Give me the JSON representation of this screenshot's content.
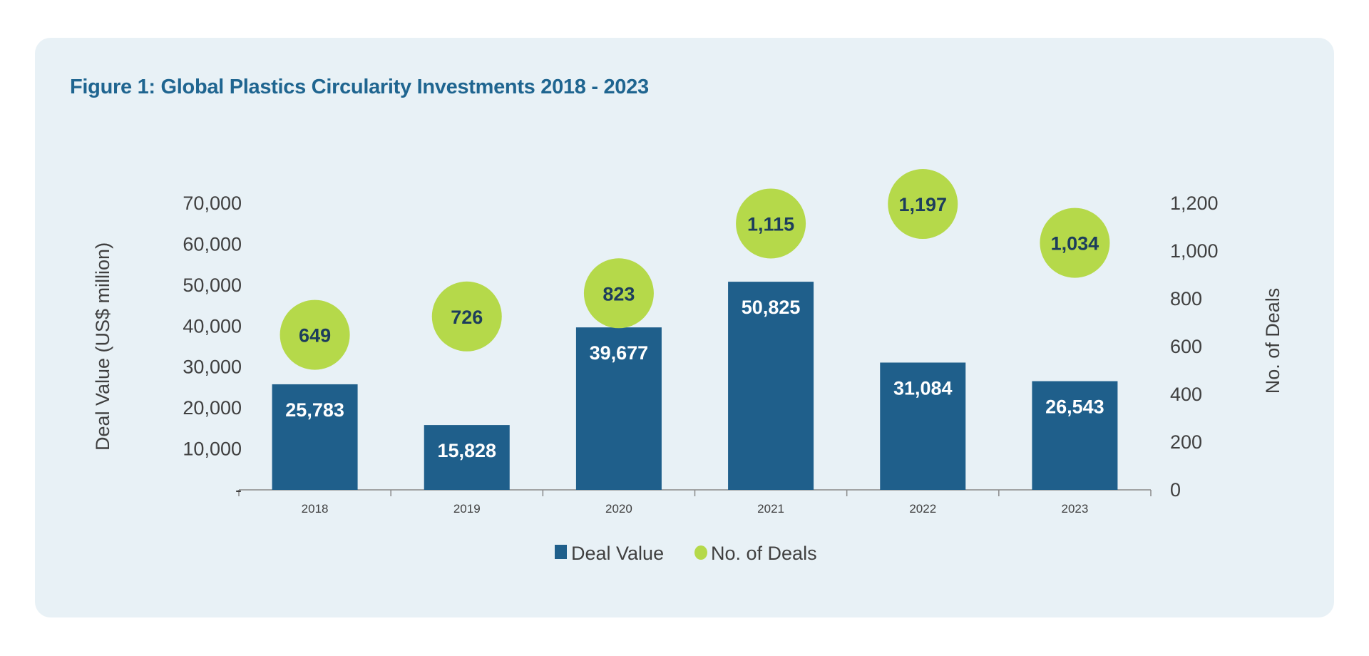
{
  "chart_data": {
    "type": "bar",
    "title": "Figure 1: Global Plastics Circularity Investments 2018 - 2023",
    "categories": [
      "2018",
      "2019",
      "2020",
      "2021",
      "2022",
      "2023"
    ],
    "series": [
      {
        "name": "Deal Value",
        "type": "bar",
        "axis": "left",
        "values": [
          25783,
          15828,
          39677,
          50825,
          31084,
          26543
        ],
        "labels": [
          "25,783",
          "15,828",
          "39,677",
          "50,825",
          "31,084",
          "26,543"
        ],
        "color": "#1f5f8b"
      },
      {
        "name": "No. of Deals",
        "type": "bubble",
        "axis": "right",
        "values": [
          649,
          726,
          823,
          1115,
          1197,
          1034
        ],
        "labels": [
          "649",
          "726",
          "823",
          "1,115",
          "1,197",
          "1,034"
        ],
        "color": "#b5d94a"
      }
    ],
    "ylabel": "Deal Value (US$ million)",
    "y2label": "No. of Deals",
    "ylim": [
      0,
      70000
    ],
    "y2lim": [
      0,
      1200
    ],
    "yticks": [
      "-",
      "10,000",
      "20,000",
      "30,000",
      "40,000",
      "50,000",
      "60,000",
      "70,000"
    ],
    "y2ticks": [
      "0",
      "200",
      "400",
      "600",
      "800",
      "1,000",
      "1,200"
    ],
    "grid": false,
    "legend": "bottom"
  }
}
